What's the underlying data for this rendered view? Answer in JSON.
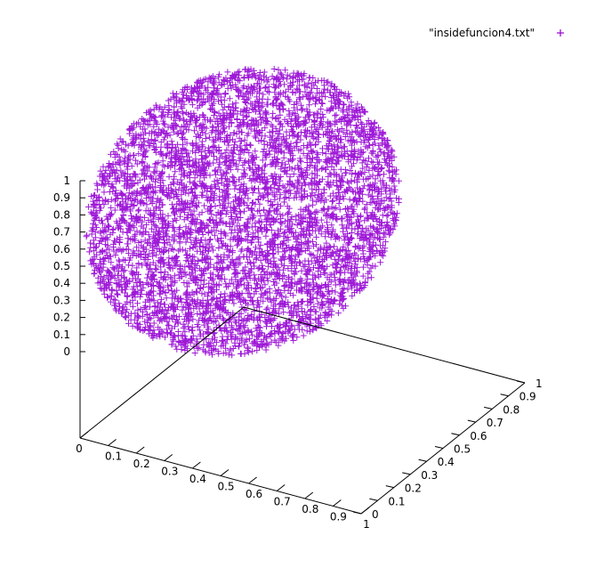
{
  "chart_data": {
    "type": "scatter",
    "projection": "3d",
    "title": "",
    "xlabel": "",
    "ylabel": "",
    "zlabel": "",
    "xlim": [
      0,
      1
    ],
    "ylim": [
      0,
      1
    ],
    "zlim": [
      0,
      1
    ],
    "x_ticks": [
      "0",
      "0.1",
      "0.2",
      "0.3",
      "0.4",
      "0.5",
      "0.6",
      "0.7",
      "0.8",
      "0.9",
      "1"
    ],
    "y_ticks": [
      "0",
      "0.1",
      "0.2",
      "0.3",
      "0.4",
      "0.5",
      "0.6",
      "0.7",
      "0.8",
      "0.9",
      "1"
    ],
    "z_ticks": [
      "0",
      "0.1",
      "0.2",
      "0.3",
      "0.4",
      "0.5",
      "0.6",
      "0.7",
      "0.8",
      "0.9",
      "1"
    ],
    "legend": {
      "position": "top-right"
    },
    "grid": false,
    "series": [
      {
        "name": "\"insidefuncion4.txt\"",
        "marker": "plus",
        "color": "#9400d3",
        "points": "dense random sample filling the region inside the function, roughly 5000 points spanning x, y, z in [0, 1]"
      }
    ]
  }
}
